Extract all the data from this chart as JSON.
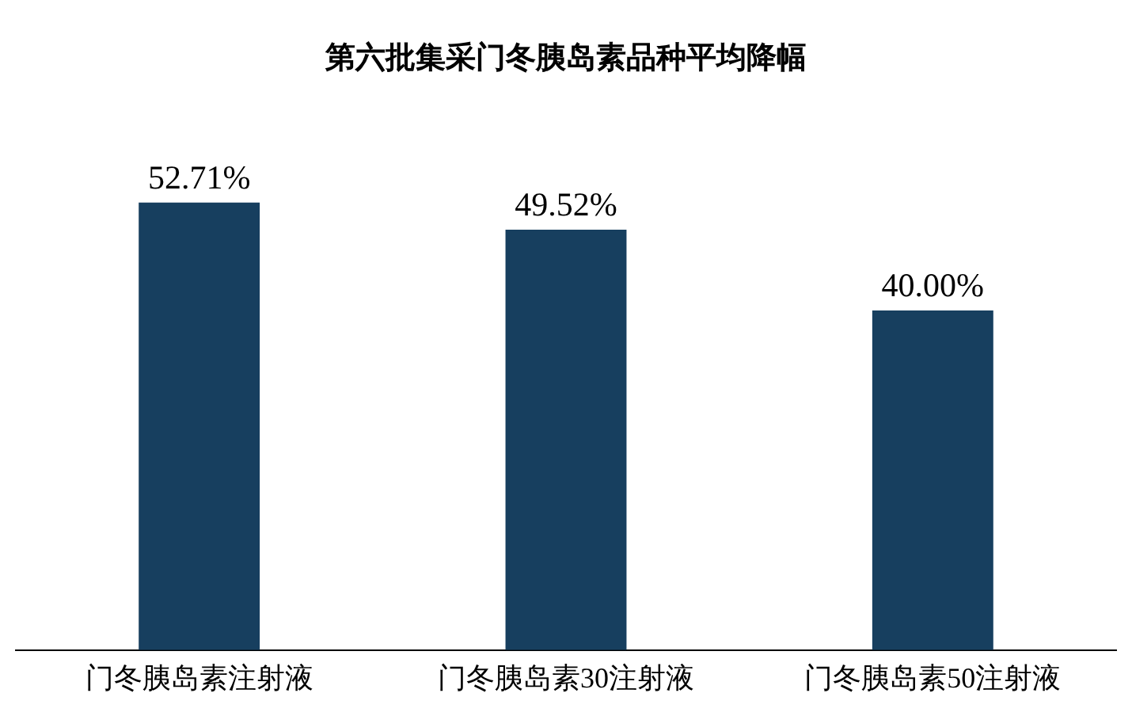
{
  "chart_data": {
    "type": "bar",
    "title": "第六批集采门冬胰岛素品种平均降幅",
    "categories": [
      "门冬胰岛素注射液",
      "门冬胰岛素30注射液",
      "门冬胰岛素50注射液"
    ],
    "values": [
      52.71,
      49.52,
      40.0
    ],
    "color": "#173f5f",
    "value_labels": [
      "52.71%",
      "49.52%",
      "40.00%"
    ],
    "grid": false,
    "legend": false,
    "tick_labels": "x"
  }
}
